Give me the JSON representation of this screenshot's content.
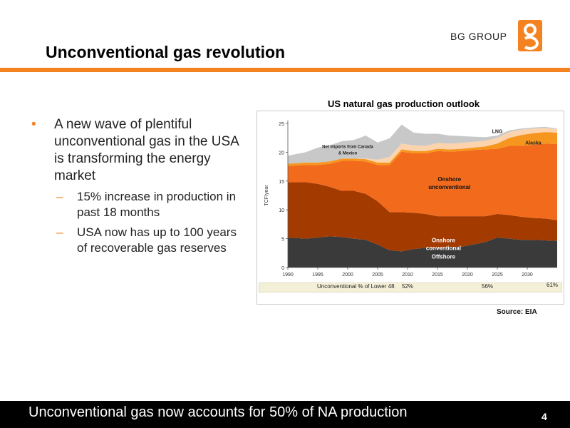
{
  "header": {
    "logo_text": "BG GROUP",
    "title": "Unconventional gas revolution",
    "accent_color": "#f58220"
  },
  "bullets": {
    "main": "A new wave of plentiful unconventional gas in the USA is transforming the energy market",
    "sub": [
      "15% increase in production in past 18 months",
      "USA now has up to 100 years of recoverable gas reserves"
    ]
  },
  "chart_data": {
    "type": "area",
    "title": "US natural gas production outlook",
    "xlabel": "",
    "ylabel": "TCF/year",
    "xlim": [
      1990,
      2035
    ],
    "ylim": [
      0,
      25
    ],
    "x_ticks": [
      "1990",
      "1995",
      "2000",
      "2005",
      "2010",
      "2015",
      "2020",
      "2025",
      "2030"
    ],
    "y_ticks": [
      0,
      5,
      10,
      15,
      20,
      25
    ],
    "x": [
      1990,
      1993,
      1995,
      1997,
      1999,
      2001,
      2003,
      2005,
      2007,
      2009,
      2011,
      2013,
      2015,
      2017,
      2019,
      2021,
      2023,
      2025,
      2027,
      2029,
      2031,
      2033,
      2035
    ],
    "series": [
      {
        "name": "Offshore",
        "color": "#3a3a3a",
        "values": [
          5.2,
          5.0,
          5.2,
          5.4,
          5.3,
          5.0,
          4.8,
          4.0,
          3.0,
          2.8,
          3.2,
          3.4,
          3.3,
          3.5,
          3.6,
          4.0,
          4.4,
          5.2,
          5.0,
          4.8,
          4.8,
          4.7,
          4.6
        ]
      },
      {
        "name": "Onshore conventional",
        "color": "#a33a00",
        "values": [
          9.6,
          9.8,
          9.3,
          8.6,
          8.0,
          8.3,
          8.0,
          7.5,
          6.6,
          6.8,
          6.3,
          5.9,
          5.6,
          5.4,
          5.3,
          4.9,
          4.5,
          4.1,
          4.1,
          4.0,
          3.8,
          3.8,
          3.6
        ]
      },
      {
        "name": "Onshore unconventional",
        "color": "#f26b1d",
        "values": [
          2.8,
          3.0,
          3.3,
          4.0,
          5.2,
          5.2,
          5.6,
          6.3,
          8.2,
          10.5,
          10.3,
          10.5,
          11.3,
          11.2,
          11.3,
          11.5,
          11.6,
          11.3,
          12.0,
          12.3,
          12.7,
          13.0,
          13.2
        ]
      },
      {
        "name": "Alaska",
        "color": "#f7961e",
        "values": [
          0.4,
          0.4,
          0.4,
          0.4,
          0.4,
          0.4,
          0.4,
          0.4,
          0.4,
          0.4,
          0.4,
          0.4,
          0.4,
          0.4,
          0.4,
          0.4,
          0.5,
          0.9,
          1.4,
          1.9,
          2.0,
          2.0,
          2.0
        ]
      },
      {
        "name": "LNG",
        "color": "#fbd4ae",
        "values": [
          0.0,
          0.0,
          0.0,
          0.0,
          0.0,
          0.0,
          0.1,
          0.5,
          1.0,
          1.0,
          1.0,
          0.9,
          1.0,
          1.0,
          1.0,
          1.0,
          1.0,
          1.0,
          1.0,
          0.9,
          0.8,
          0.7,
          0.6
        ]
      },
      {
        "name": "Net imports from Canada & Mexico",
        "color": "#c8c8c8",
        "values": [
          1.4,
          1.8,
          2.6,
          2.8,
          3.0,
          3.2,
          4.0,
          3.0,
          3.2,
          3.3,
          2.2,
          2.1,
          1.6,
          1.4,
          1.2,
          0.9,
          0.6,
          0.4,
          0.3,
          0.2,
          0.2,
          0.2,
          0.1
        ]
      }
    ],
    "labels": [
      {
        "series": "Net imports from Canada & Mexico",
        "text_line1": "Net imports from Canada",
        "text_line2": "& Mexico"
      },
      {
        "series": "LNG",
        "text_line1": "LNG"
      },
      {
        "series": "Alaska",
        "text_line1": "Alaska"
      },
      {
        "series": "Onshore unconventional",
        "text_line1": "Onshore",
        "text_line2": "unconventional"
      },
      {
        "series": "Onshore conventional",
        "text_line1": "Onshore",
        "text_line2": "conventional"
      },
      {
        "series": "Offshore",
        "text_line1": "Offshore"
      }
    ],
    "unconventional_share": {
      "label": "Unconventional % of Lower 48",
      "points": [
        {
          "year": 2009,
          "value": "52%"
        },
        {
          "year": 2020,
          "value": "56%"
        },
        {
          "year": 2035,
          "value": "61%"
        }
      ]
    },
    "source": "Source: EIA"
  },
  "footer": {
    "text": "Unconventional gas now accounts for 50% of NA production",
    "page": "4"
  }
}
